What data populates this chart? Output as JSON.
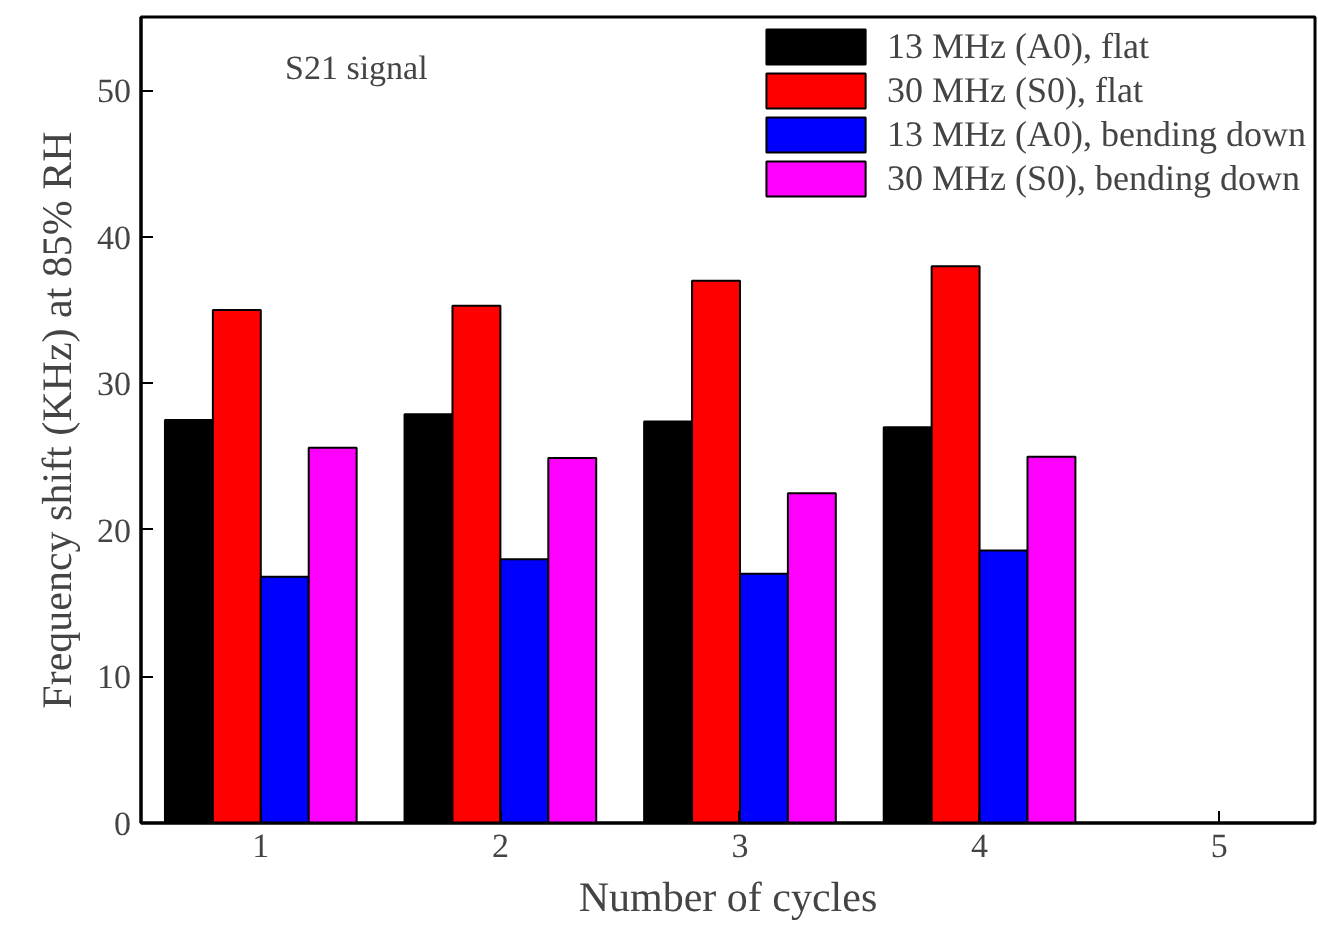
{
  "chart_data": {
    "type": "bar",
    "xlabel": "Number of cycles",
    "ylabel": "Frequency shift (KHz) at 85% RH",
    "x": [
      1,
      2,
      3,
      4
    ],
    "series": [
      {
        "name": "13 MHz (A0), flat",
        "color": "#000000",
        "values": [
          27.5,
          27.9,
          27.4,
          27.0
        ]
      },
      {
        "name": "30 MHz (S0), flat",
        "color": "#ff0000",
        "values": [
          35.0,
          35.3,
          37.0,
          38.0
        ]
      },
      {
        "name": "13 MHz (A0), bending down",
        "color": "#0000ff",
        "values": [
          16.8,
          18.0,
          17.0,
          18.6
        ]
      },
      {
        "name": "30 MHz (S0), bending down",
        "color": "#ff00ff",
        "values": [
          25.6,
          24.9,
          22.5,
          25.0
        ]
      }
    ],
    "xlim": [
      0.5,
      5.4
    ],
    "xticks": [
      1,
      2,
      3,
      4,
      5
    ],
    "ylim": [
      0,
      55
    ],
    "yticks": [
      0,
      10,
      20,
      30,
      40,
      50
    ],
    "annotations": [
      "S21 signal"
    ],
    "legend": "top right",
    "grid": false
  }
}
